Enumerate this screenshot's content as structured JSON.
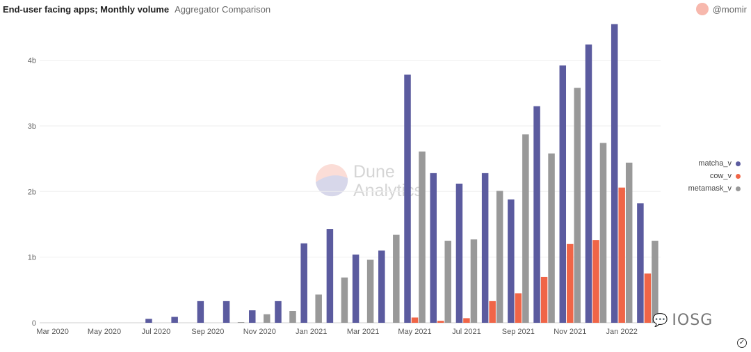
{
  "header": {
    "title": "End-user facing apps; Monthly volume",
    "subtitle": "Aggregator Comparison"
  },
  "author": {
    "handle": "@momir"
  },
  "brand_watermark": {
    "line1": "Dune",
    "line2": "Analytics"
  },
  "corner_watermark": {
    "text": "IOSG",
    "icon": "wechat-icon"
  },
  "chart_data": {
    "type": "bar",
    "categories": [
      "Mar 2020",
      "Apr 2020",
      "May 2020",
      "Jun 2020",
      "Jul 2020",
      "Aug 2020",
      "Sep 2020",
      "Oct 2020",
      "Nov 2020",
      "Dec 2020",
      "Jan 2021",
      "Feb 2021",
      "Mar 2021",
      "Apr 2021",
      "May 2021",
      "Jun 2021",
      "Jul 2021",
      "Aug 2021",
      "Sep 2021",
      "Oct 2021",
      "Nov 2021",
      "Dec 2021",
      "Jan 2022",
      "Feb 2022"
    ],
    "x_tick_labels": [
      "Mar 2020",
      "",
      "May 2020",
      "",
      "Jul 2020",
      "",
      "Sep 2020",
      "",
      "Nov 2020",
      "",
      "Jan 2021",
      "",
      "Mar 2021",
      "",
      "May 2021",
      "",
      "Jul 2021",
      "",
      "Sep 2021",
      "",
      "Nov 2021",
      "",
      "Jan 2022",
      ""
    ],
    "y_ticks": [
      0,
      1,
      2,
      3,
      4
    ],
    "y_tick_labels": [
      "0",
      "1b",
      "2b",
      "3b",
      "4b"
    ],
    "ylim": [
      0,
      4.6
    ],
    "y_unit": "billions",
    "grid": true,
    "legend_position": "right",
    "series": [
      {
        "name": "matcha_v",
        "color": "#5b5b9f",
        "values": [
          0,
          0,
          0,
          0,
          0.06,
          0.09,
          0.33,
          0.33,
          0.19,
          0.33,
          1.21,
          1.43,
          1.04,
          1.1,
          3.78,
          2.28,
          2.12,
          2.28,
          1.88,
          3.3,
          3.92,
          4.24,
          4.55,
          1.82
        ]
      },
      {
        "name": "cow_v",
        "color": "#f06547",
        "values": [
          0,
          0,
          0,
          0,
          0,
          0,
          0,
          0,
          0,
          0,
          0,
          0,
          0,
          0,
          0.08,
          0.03,
          0.07,
          0.33,
          0.45,
          0.7,
          1.2,
          1.26,
          2.06,
          0.75
        ]
      },
      {
        "name": "metamask_v",
        "color": "#999999",
        "values": [
          0,
          0,
          0,
          0,
          0,
          0,
          0,
          0.01,
          0.13,
          0.18,
          0.43,
          0.69,
          0.96,
          1.34,
          2.61,
          1.25,
          1.27,
          2.01,
          2.87,
          2.58,
          3.58,
          2.74,
          2.44,
          1.25
        ]
      }
    ]
  }
}
